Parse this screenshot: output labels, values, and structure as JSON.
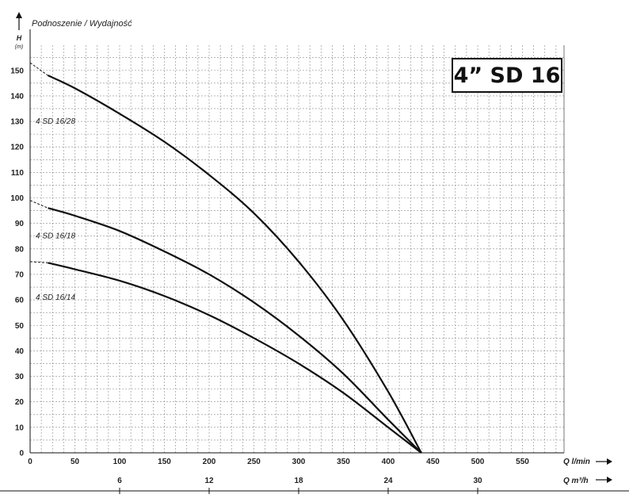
{
  "chart_data": {
    "type": "line",
    "title": "Podnoszenie / Wydajność",
    "ylabel": "H",
    "ylabel_unit": "(m)",
    "xlabel": "Q l/min",
    "x2label": "Q m³/h",
    "xlim": [
      0,
      600
    ],
    "ylim": [
      0,
      155
    ],
    "x_ticks": [
      0,
      50,
      100,
      150,
      200,
      250,
      300,
      350,
      400,
      450,
      500,
      550
    ],
    "y_ticks": [
      0,
      10,
      20,
      30,
      40,
      50,
      60,
      70,
      80,
      90,
      100,
      110,
      120,
      130,
      140,
      150
    ],
    "x2_ticks": [
      6,
      12,
      18,
      24,
      30
    ],
    "grid": true,
    "series": [
      {
        "name": "4 SD 16/28",
        "x": [
          0,
          20,
          50,
          100,
          150,
          200,
          250,
          300,
          350,
          400,
          437
        ],
        "y": [
          153,
          148,
          143,
          133,
          122,
          109,
          94,
          75,
          52,
          24,
          0
        ]
      },
      {
        "name": "4 SD 16/18",
        "x": [
          0,
          20,
          50,
          100,
          150,
          200,
          250,
          300,
          350,
          400,
          437
        ],
        "y": [
          99,
          96,
          93,
          87,
          79,
          70,
          59,
          46,
          31,
          13,
          0
        ]
      },
      {
        "name": "4 SD 16/14",
        "x": [
          0,
          20,
          50,
          100,
          150,
          200,
          250,
          300,
          350,
          400,
          437
        ],
        "y": [
          75,
          74.5,
          72,
          67.5,
          61.5,
          54,
          45,
          35,
          23.5,
          10,
          0
        ]
      }
    ]
  },
  "badge": "4” SD 16",
  "y_axis_label": "H",
  "y_axis_unit": "(m)",
  "x_axis_label": "Q l/min",
  "x2_axis_label": "Q m³/h"
}
